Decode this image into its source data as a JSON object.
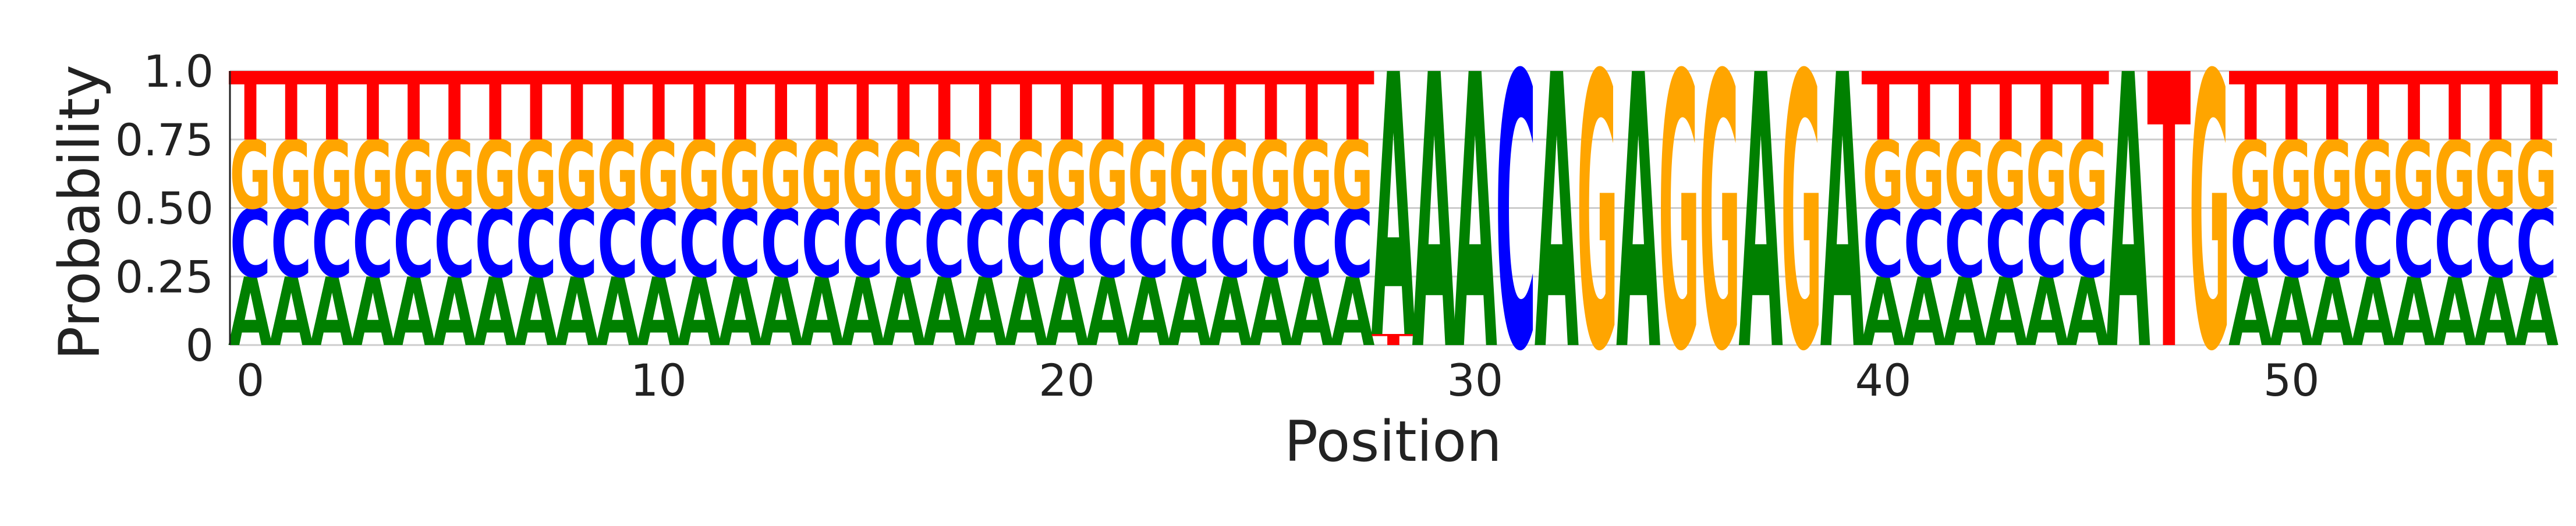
{
  "chart_data": {
    "type": "sequence-logo",
    "title": "",
    "xlabel": "Position",
    "ylabel": "Probability",
    "xlim": [
      -0.5,
      56.5
    ],
    "ylim": [
      0,
      1.0
    ],
    "x_ticks": [
      0,
      10,
      20,
      30,
      40,
      50
    ],
    "x_tick_labels": [
      "0",
      "10",
      "20",
      "30",
      "40",
      "50"
    ],
    "y_ticks": [
      0,
      0.25,
      0.5,
      0.75,
      1.0
    ],
    "y_tick_labels": [
      "0",
      "0.25",
      "0.50",
      "0.75",
      "1.0"
    ],
    "grid": "horizontal",
    "legend": "none",
    "colors": {
      "A": "#008000",
      "C": "#0000ff",
      "G": "#ffa500",
      "T": "#ff0000"
    },
    "alphabet": [
      "A",
      "C",
      "G",
      "T"
    ],
    "positions": [
      {
        "pos": 0,
        "A": 0.25,
        "C": 0.25,
        "G": 0.25,
        "T": 0.25
      },
      {
        "pos": 1,
        "A": 0.25,
        "C": 0.25,
        "G": 0.25,
        "T": 0.25
      },
      {
        "pos": 2,
        "A": 0.25,
        "C": 0.25,
        "G": 0.25,
        "T": 0.25
      },
      {
        "pos": 3,
        "A": 0.25,
        "C": 0.25,
        "G": 0.25,
        "T": 0.25
      },
      {
        "pos": 4,
        "A": 0.25,
        "C": 0.25,
        "G": 0.25,
        "T": 0.25
      },
      {
        "pos": 5,
        "A": 0.25,
        "C": 0.25,
        "G": 0.25,
        "T": 0.25
      },
      {
        "pos": 6,
        "A": 0.25,
        "C": 0.25,
        "G": 0.25,
        "T": 0.25
      },
      {
        "pos": 7,
        "A": 0.25,
        "C": 0.25,
        "G": 0.25,
        "T": 0.25
      },
      {
        "pos": 8,
        "A": 0.25,
        "C": 0.25,
        "G": 0.25,
        "T": 0.25
      },
      {
        "pos": 9,
        "A": 0.25,
        "C": 0.25,
        "G": 0.25,
        "T": 0.25
      },
      {
        "pos": 10,
        "A": 0.25,
        "C": 0.25,
        "G": 0.25,
        "T": 0.25
      },
      {
        "pos": 11,
        "A": 0.25,
        "C": 0.25,
        "G": 0.25,
        "T": 0.25
      },
      {
        "pos": 12,
        "A": 0.25,
        "C": 0.25,
        "G": 0.25,
        "T": 0.25
      },
      {
        "pos": 13,
        "A": 0.25,
        "C": 0.25,
        "G": 0.25,
        "T": 0.25
      },
      {
        "pos": 14,
        "A": 0.25,
        "C": 0.25,
        "G": 0.25,
        "T": 0.25
      },
      {
        "pos": 15,
        "A": 0.25,
        "C": 0.25,
        "G": 0.25,
        "T": 0.25
      },
      {
        "pos": 16,
        "A": 0.25,
        "C": 0.25,
        "G": 0.25,
        "T": 0.25
      },
      {
        "pos": 17,
        "A": 0.25,
        "C": 0.25,
        "G": 0.25,
        "T": 0.25
      },
      {
        "pos": 18,
        "A": 0.25,
        "C": 0.25,
        "G": 0.25,
        "T": 0.25
      },
      {
        "pos": 19,
        "A": 0.25,
        "C": 0.25,
        "G": 0.25,
        "T": 0.25
      },
      {
        "pos": 20,
        "A": 0.25,
        "C": 0.25,
        "G": 0.25,
        "T": 0.25
      },
      {
        "pos": 21,
        "A": 0.25,
        "C": 0.25,
        "G": 0.25,
        "T": 0.25
      },
      {
        "pos": 22,
        "A": 0.25,
        "C": 0.25,
        "G": 0.25,
        "T": 0.25
      },
      {
        "pos": 23,
        "A": 0.25,
        "C": 0.25,
        "G": 0.25,
        "T": 0.25
      },
      {
        "pos": 24,
        "A": 0.25,
        "C": 0.25,
        "G": 0.25,
        "T": 0.25
      },
      {
        "pos": 25,
        "A": 0.25,
        "C": 0.25,
        "G": 0.25,
        "T": 0.25
      },
      {
        "pos": 26,
        "A": 0.25,
        "C": 0.25,
        "G": 0.25,
        "T": 0.25
      },
      {
        "pos": 27,
        "A": 0.25,
        "C": 0.25,
        "G": 0.25,
        "T": 0.25
      },
      {
        "pos": 28,
        "A": 0.96,
        "C": 0.0,
        "G": 0.0,
        "T": 0.04
      },
      {
        "pos": 29,
        "A": 1.0,
        "C": 0.0,
        "G": 0.0,
        "T": 0.0
      },
      {
        "pos": 30,
        "A": 1.0,
        "C": 0.0,
        "G": 0.0,
        "T": 0.0
      },
      {
        "pos": 31,
        "A": 0.0,
        "C": 1.0,
        "G": 0.0,
        "T": 0.0
      },
      {
        "pos": 32,
        "A": 1.0,
        "C": 0.0,
        "G": 0.0,
        "T": 0.0
      },
      {
        "pos": 33,
        "A": 0.0,
        "C": 0.0,
        "G": 1.0,
        "T": 0.0
      },
      {
        "pos": 34,
        "A": 1.0,
        "C": 0.0,
        "G": 0.0,
        "T": 0.0
      },
      {
        "pos": 35,
        "A": 0.0,
        "C": 0.0,
        "G": 1.0,
        "T": 0.0
      },
      {
        "pos": 36,
        "A": 0.0,
        "C": 0.0,
        "G": 1.0,
        "T": 0.0
      },
      {
        "pos": 37,
        "A": 1.0,
        "C": 0.0,
        "G": 0.0,
        "T": 0.0
      },
      {
        "pos": 38,
        "A": 0.0,
        "C": 0.0,
        "G": 1.0,
        "T": 0.0
      },
      {
        "pos": 39,
        "A": 1.0,
        "C": 0.0,
        "G": 0.0,
        "T": 0.0
      },
      {
        "pos": 40,
        "A": 0.25,
        "C": 0.25,
        "G": 0.25,
        "T": 0.25
      },
      {
        "pos": 41,
        "A": 0.25,
        "C": 0.25,
        "G": 0.25,
        "T": 0.25
      },
      {
        "pos": 42,
        "A": 0.25,
        "C": 0.25,
        "G": 0.25,
        "T": 0.25
      },
      {
        "pos": 43,
        "A": 0.25,
        "C": 0.25,
        "G": 0.25,
        "T": 0.25
      },
      {
        "pos": 44,
        "A": 0.25,
        "C": 0.25,
        "G": 0.25,
        "T": 0.25
      },
      {
        "pos": 45,
        "A": 0.25,
        "C": 0.25,
        "G": 0.25,
        "T": 0.25
      },
      {
        "pos": 46,
        "A": 1.0,
        "C": 0.0,
        "G": 0.0,
        "T": 0.0
      },
      {
        "pos": 47,
        "A": 0.0,
        "C": 0.0,
        "G": 0.0,
        "T": 1.0
      },
      {
        "pos": 48,
        "A": 0.0,
        "C": 0.0,
        "G": 1.0,
        "T": 0.0
      },
      {
        "pos": 49,
        "A": 0.25,
        "C": 0.25,
        "G": 0.25,
        "T": 0.25
      },
      {
        "pos": 50,
        "A": 0.25,
        "C": 0.25,
        "G": 0.25,
        "T": 0.25
      },
      {
        "pos": 51,
        "A": 0.25,
        "C": 0.25,
        "G": 0.25,
        "T": 0.25
      },
      {
        "pos": 52,
        "A": 0.25,
        "C": 0.25,
        "G": 0.25,
        "T": 0.25
      },
      {
        "pos": 53,
        "A": 0.25,
        "C": 0.25,
        "G": 0.25,
        "T": 0.25
      },
      {
        "pos": 54,
        "A": 0.25,
        "C": 0.25,
        "G": 0.25,
        "T": 0.25
      },
      {
        "pos": 55,
        "A": 0.25,
        "C": 0.25,
        "G": 0.25,
        "T": 0.25
      },
      {
        "pos": 56,
        "A": 0.25,
        "C": 0.25,
        "G": 0.25,
        "T": 0.25
      }
    ]
  }
}
